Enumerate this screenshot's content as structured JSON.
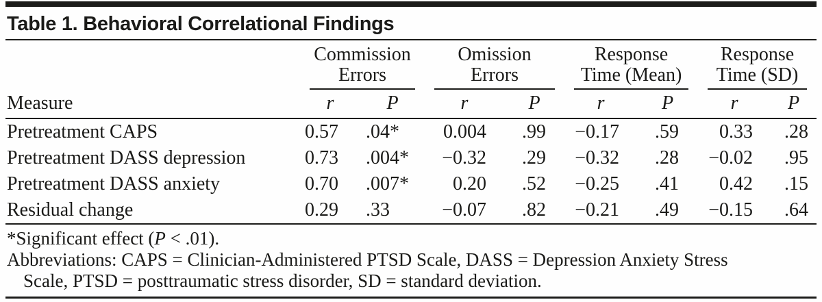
{
  "table": {
    "title": "Table 1. Behavioral Correlational Findings",
    "measure_header": "Measure",
    "r_header": "r",
    "p_header": "P",
    "groups": [
      {
        "line1": "Commission",
        "line2": "Errors"
      },
      {
        "line1": "Omission",
        "line2": "Errors"
      },
      {
        "line1": "Response",
        "line2": "Time (Mean)"
      },
      {
        "line1": "Response",
        "line2": "Time (SD)"
      }
    ],
    "rows": [
      {
        "measure": "Pretreatment CAPS",
        "values": [
          "0.57",
          ".04*",
          "0.004",
          ".99",
          "−0.17",
          ".59",
          "0.33",
          ".28"
        ]
      },
      {
        "measure": "Pretreatment DASS depression",
        "values": [
          "0.73",
          ".004*",
          "−0.32",
          ".29",
          "−0.32",
          ".28",
          "−0.02",
          ".95"
        ]
      },
      {
        "measure": "Pretreatment DASS anxiety",
        "values": [
          "0.70",
          ".007*",
          "0.20",
          ".52",
          "−0.25",
          ".41",
          "0.42",
          ".15"
        ]
      },
      {
        "measure": "Residual change",
        "values": [
          "0.29",
          ".33",
          "−0.07",
          ".82",
          "−0.21",
          ".49",
          "−0.15",
          ".64"
        ]
      }
    ],
    "footnotes": {
      "sig_prefix": "*Significant effect (",
      "sig_p": "P",
      "sig_suffix": " < .01).",
      "abbr_line1": "Abbreviations: CAPS = Clinician-Administered PTSD Scale, DASS = Depression Anxiety Stress",
      "abbr_line2": "Scale, PTSD = posttraumatic stress disorder, SD = standard deviation."
    },
    "colors": {
      "rule": "#1c1c1a",
      "text": "#1a1a18",
      "background": "#fefefe"
    }
  }
}
